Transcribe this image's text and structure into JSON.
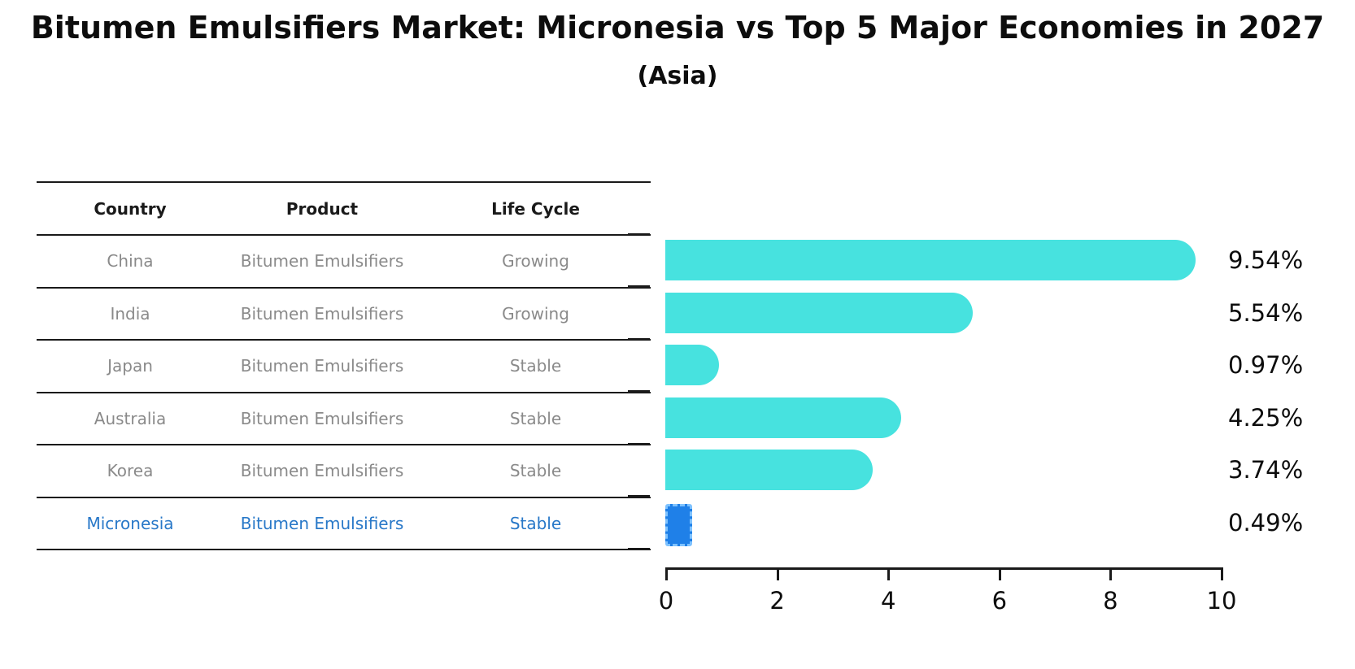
{
  "header": {
    "title": "Bitumen Emulsifiers Market: Micronesia vs Top 5 Major Economies in 2027",
    "subtitle": "(Asia)"
  },
  "table": {
    "headers": [
      "Country",
      "Product",
      "Life Cycle"
    ],
    "rows": [
      {
        "country": "China",
        "product": "Bitumen Emulsifiers",
        "life_cycle": "Growing",
        "highlight": false
      },
      {
        "country": "India",
        "product": "Bitumen Emulsifiers",
        "life_cycle": "Growing",
        "highlight": false
      },
      {
        "country": "Japan",
        "product": "Bitumen Emulsifiers",
        "life_cycle": "Stable",
        "highlight": false
      },
      {
        "country": "Australia",
        "product": "Bitumen Emulsifiers",
        "life_cycle": "Stable",
        "highlight": false
      },
      {
        "country": "Korea",
        "product": "Bitumen Emulsifiers",
        "life_cycle": "Stable",
        "highlight": false
      },
      {
        "country": "Micronesia",
        "product": "Bitumen Emulsifiers",
        "life_cycle": "Stable",
        "highlight": true
      }
    ]
  },
  "chart_data": {
    "type": "bar",
    "orientation": "horizontal",
    "title": "Bitumen Emulsifiers Market: Micronesia vs Top 5 Major Economies in 2027",
    "subtitle": "(Asia)",
    "categories": [
      "China",
      "India",
      "Japan",
      "Australia",
      "Korea",
      "Micronesia"
    ],
    "values": [
      9.54,
      5.54,
      0.97,
      4.25,
      3.74,
      0.49
    ],
    "value_labels": [
      "9.54%",
      "5.54%",
      "0.97%",
      "4.25%",
      "3.74%",
      "0.49%"
    ],
    "x_ticks": [
      "0",
      "2",
      "4",
      "6",
      "8",
      "10"
    ],
    "xlim": [
      0,
      10
    ],
    "ylabel": "",
    "xlabel": "",
    "grid": false,
    "legend": "none",
    "bar_color": "#47e2df",
    "highlight_color": "#1f80e8",
    "highlight_index": 5,
    "axis_color": "#1a1a1a",
    "muted_text_color": "#8a8a8a",
    "highlight_text_color": "#2878c8"
  }
}
